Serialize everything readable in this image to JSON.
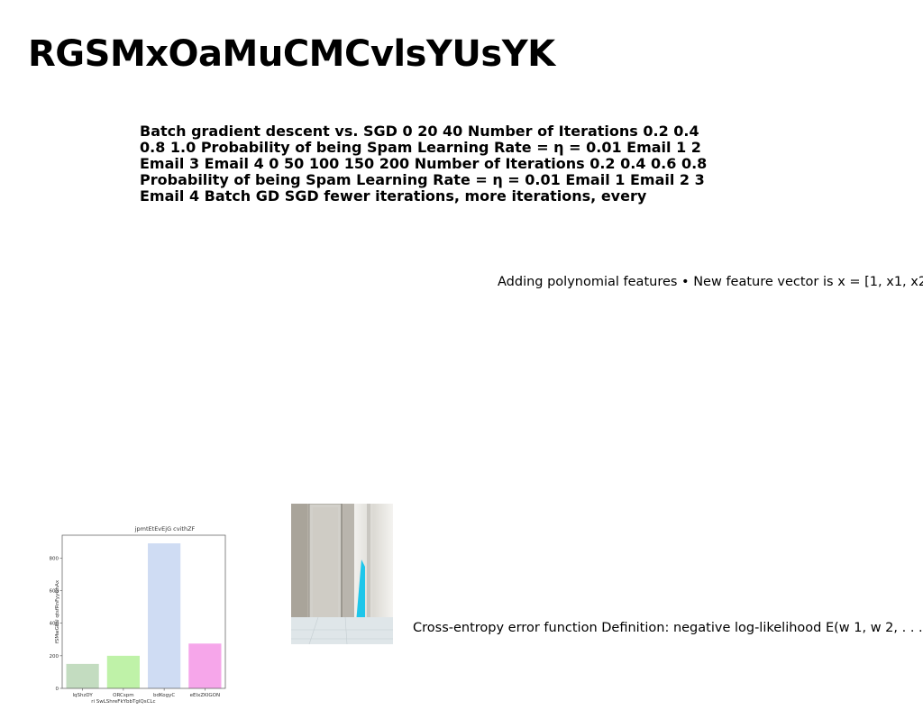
{
  "page": {
    "title": "RGSMxOaMuCMCvlsYUsYK"
  },
  "content": {
    "bold_text": "Batch gradient descent vs. SGD 0 20 40 Number of Iterations 0.2 0.4 0.8 1.0 Probability of being Spam Learning Rate = η = 0.01 Email 1 2 Email 3 Email 4 0 50 100 150 200 Number of Iterations 0.2 0.4 0.6 0.8 Probability of being Spam Learning Rate = η = 0.01 Email 1 Email 2 3 Email 4 Batch GD SGD fewer iterations, more iterations, every",
    "polynomial_text": "Adding polynomial features • New feature vector is x = [1, x1, x2,",
    "cross_entropy_text": "Cross-entropy error function Definition: negative log-likelihood E(w 1, w 2, . . . ,"
  },
  "chart_data": {
    "type": "bar",
    "title": "jpmtEtEvEjG cvithZF",
    "xlabel": "",
    "ylabel": "fSMwGBU qtsfRnFyyGhAx",
    "categories": [
      "lqShzDY",
      "ORCspm\nri SwLShreFkYbbTglQsCLc",
      "bdKogyC",
      "eEIxZKIGON"
    ],
    "category_lines": [
      [
        "lqShzDY"
      ],
      [
        "ORCspm",
        "ri SwLShreFkYbbTglQsCLc"
      ],
      [
        "bdKogyC"
      ],
      [
        "eEIxZKIGON"
      ]
    ],
    "values": [
      150,
      200,
      890,
      275
    ],
    "colors": [
      "#c3dcc0",
      "#bff2a8",
      "#cfdcf3",
      "#f6a6ea"
    ],
    "yticks": [
      0,
      200,
      400,
      600,
      800
    ],
    "ylim": [
      0,
      940
    ],
    "grid": false
  },
  "photo": {
    "colors": {
      "wall": "#bcb7ad",
      "door": "#d5d3cc",
      "curtain": "#e9e8e3",
      "cyan": "#1ec6ea",
      "floor": "#e4ebee"
    }
  }
}
